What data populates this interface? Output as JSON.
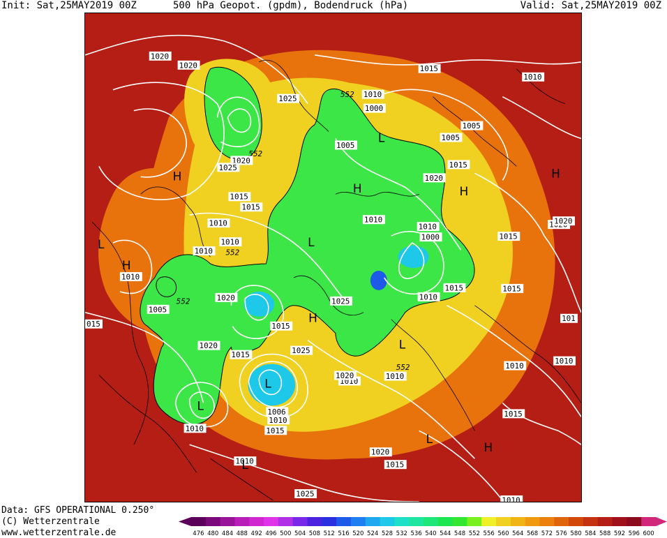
{
  "header": {
    "init": "Init: Sat,25MAY2019 00Z",
    "title": "500 hPa Geopot. (gpdm), Bodendruck (hPa)",
    "valid": "Valid: Sat,25MAY2019 00Z"
  },
  "footer": {
    "data_source": "Data: GFS OPERATIONAL 0.250°",
    "copyright": "(C) Wetterzentrale",
    "website": "www.wetterzentrale.de"
  },
  "legend": {
    "ticks": [
      "476",
      "480",
      "484",
      "488",
      "492",
      "496",
      "500",
      "504",
      "508",
      "512",
      "516",
      "520",
      "524",
      "528",
      "532",
      "536",
      "540",
      "544",
      "548",
      "552",
      "556",
      "560",
      "564",
      "568",
      "572",
      "576",
      "580",
      "584",
      "588",
      "592",
      "596",
      "600"
    ],
    "colors": [
      "#5a005a",
      "#7a0a7a",
      "#9a149a",
      "#b81eb8",
      "#d028d0",
      "#e032e6",
      "#b030e8",
      "#7828e8",
      "#4a22e0",
      "#2a30e0",
      "#1e5ae8",
      "#1e80f0",
      "#1ea8f0",
      "#1ec8e8",
      "#1ee0c8",
      "#1ee6a0",
      "#1ee678",
      "#1ee650",
      "#32e632",
      "#78f020",
      "#f0f028",
      "#f0d020",
      "#f0b414",
      "#f09a10",
      "#ec800c",
      "#e0640a",
      "#d24808",
      "#c43210",
      "#b41e14",
      "#a0101a",
      "#8c0a1e",
      "#d2287a"
    ]
  },
  "map": {
    "colors": {
      "background": "#b41e14",
      "ring_orange": "#e8720c",
      "ring_yellow": "#f0d020",
      "trough_green": "#3ce646",
      "cyan": "#1ec8e8",
      "low_blue": "#1e5ae8",
      "isobar": "#ffffff",
      "coast": "#000000"
    },
    "pressure_systems": [
      {
        "label": "H"
      },
      {
        "label": "H"
      },
      {
        "label": "H"
      },
      {
        "label": "H"
      },
      {
        "label": "H"
      },
      {
        "label": "H"
      },
      {
        "label": "H"
      },
      {
        "label": "L"
      },
      {
        "label": "L"
      },
      {
        "label": "L"
      },
      {
        "label": "L"
      },
      {
        "label": "L"
      },
      {
        "label": "L"
      },
      {
        "label": "L"
      },
      {
        "label": "L"
      }
    ],
    "isobar_labels": [
      "1020",
      "1020",
      "1025",
      "552",
      "1010",
      "1015",
      "1010",
      "1000",
      "1005",
      "1005",
      "1015",
      "552",
      "1005",
      "1020",
      "1025",
      "1020",
      "1015",
      "1015",
      "1010",
      "1010",
      "1015",
      "1020",
      "1010",
      "1010",
      "1015",
      "1010",
      "1000",
      "552",
      "1010",
      "1010",
      "1015",
      "552",
      "1020",
      "1005",
      "015",
      "1015",
      "1025",
      "1025",
      "1020",
      "1015",
      "552",
      "1010",
      "1020",
      "1010",
      "1006",
      "1010",
      "1015",
      "1020",
      "1015",
      "1010",
      "1010",
      "1010",
      "1015",
      "1025",
      "1010",
      "101",
      "1020",
      "1010"
    ]
  }
}
